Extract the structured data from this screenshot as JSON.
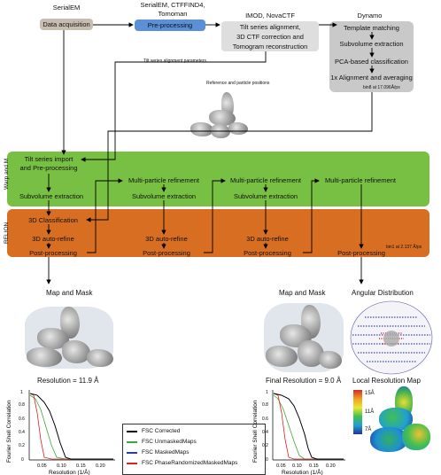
{
  "top": {
    "serialem_tool": "SerialEM",
    "data_acquisition": "Data acquisition",
    "preproc_tools": [
      "SerialEM, CTFFIND4,",
      "Tomoman"
    ],
    "preprocessing": "Pre-processing",
    "imod_tools": "IMOD, NovaCTF",
    "tilt_lines": [
      "Tilt series alignment,",
      "3D CTF correction and",
      "Tomogram reconstruction"
    ],
    "dynamo_tool": "Dynamo",
    "dynamo_steps": [
      "Template matching",
      "Subvolume extraction",
      "PCA-based classification",
      "1x Alignment and averaging"
    ],
    "bin_dynamo": "bin8 at 17.096Å/px",
    "tilt_params": "Tilt series alignment parameters",
    "ref_positions": "Reference and particle positions"
  },
  "warp": {
    "label": "Warp and M",
    "import": [
      "Tilt series import",
      "and Pre-processing"
    ],
    "subvolume": "Subvolume extraction",
    "multi": "Multi-particle refinement",
    "sub2": "Subvolume extraction"
  },
  "relion": {
    "label": "RELION",
    "classification": "3D  Classification",
    "autorefine": "3D auto-refine",
    "postprocessing": "Post-processing",
    "bin_relion": "bin1 at 2.137 Å/px"
  },
  "results": {
    "map_mask_left": "Map and Mask",
    "map_mask_right": "Map and Mask",
    "angular": "Angular Distribution",
    "res_left": "Resolution =  11.9 Å",
    "res_right": "Final Resolution =  9.0 Å",
    "local_res": "Local Resolution Map",
    "scale_labels": [
      "15Å",
      "11Å",
      "7Å"
    ]
  },
  "fsc": {
    "ylabel": "Fourier Shell Correlation",
    "xlabel": "Resolution (1/Å)",
    "yticks": [
      "0",
      "0.2",
      "0.4",
      "0.6",
      "0.8",
      "1"
    ],
    "xticks": [
      "0.05",
      "0.10",
      "0.15",
      "0.20"
    ]
  },
  "legend": [
    {
      "label": "FSC Corrected",
      "color": "#000000"
    },
    {
      "label": "FSC UnmaskedMaps",
      "color": "#3aa83a"
    },
    {
      "label": "FSC MaskedMaps",
      "color": "#2a3f9e"
    },
    {
      "label": "FSC PhaseRandomizedMaskedMaps",
      "color": "#e02020"
    }
  ],
  "colors": {
    "grey_box": "#c8bdb1",
    "blue_box": "#5b8fd6",
    "light_box": "#dedede",
    "dynamo_bg": "#c9c9c9",
    "warp_green": "#77c043",
    "relion_orange": "#d86e22"
  }
}
